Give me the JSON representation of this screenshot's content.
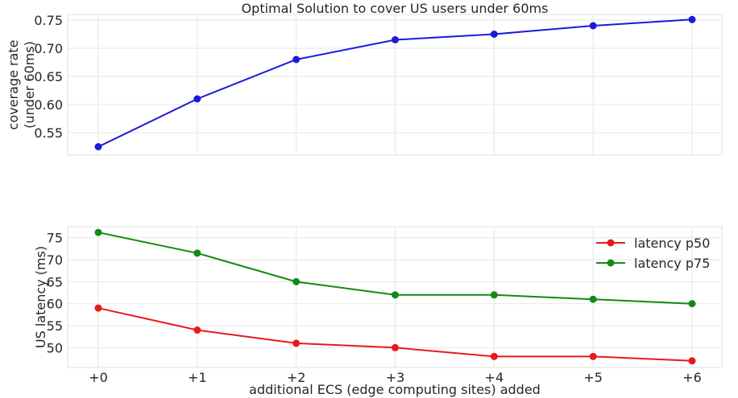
{
  "chart_data": [
    {
      "type": "line",
      "title": "Optimal Solution to cover US users under 60ms",
      "xlabel": "",
      "ylabel": [
        "coverage rate",
        "(under 60ms)"
      ],
      "categories": [
        "+0",
        "+1",
        "+2",
        "+3",
        "+4",
        "+5",
        "+6"
      ],
      "ylim": [
        0.51,
        0.76
      ],
      "yticks": [
        "0.55",
        "0.60",
        "0.65",
        "0.70",
        "0.75"
      ],
      "grid": true,
      "series": [
        {
          "color": "#1a1adb",
          "values": [
            0.525,
            0.61,
            0.68,
            0.715,
            0.725,
            0.74,
            0.751
          ]
        }
      ]
    },
    {
      "type": "line",
      "title": "",
      "xlabel": "additional ECS (edge computing sites) added",
      "ylabel": [
        "US latency (ms)"
      ],
      "categories": [
        "+0",
        "+1",
        "+2",
        "+3",
        "+4",
        "+5",
        "+6"
      ],
      "ylim": [
        45.5,
        77.5
      ],
      "yticks": [
        "50",
        "55",
        "60",
        "65",
        "70",
        "75"
      ],
      "grid": true,
      "legend": "top-right",
      "series": [
        {
          "name": "latency p50",
          "color": "#e8191a",
          "values": [
            59,
            54,
            51,
            50,
            48,
            48,
            47
          ]
        },
        {
          "name": "latency p75",
          "color": "#138a13",
          "values": [
            76.2,
            71.5,
            65,
            62,
            62,
            61,
            60
          ]
        }
      ]
    }
  ]
}
